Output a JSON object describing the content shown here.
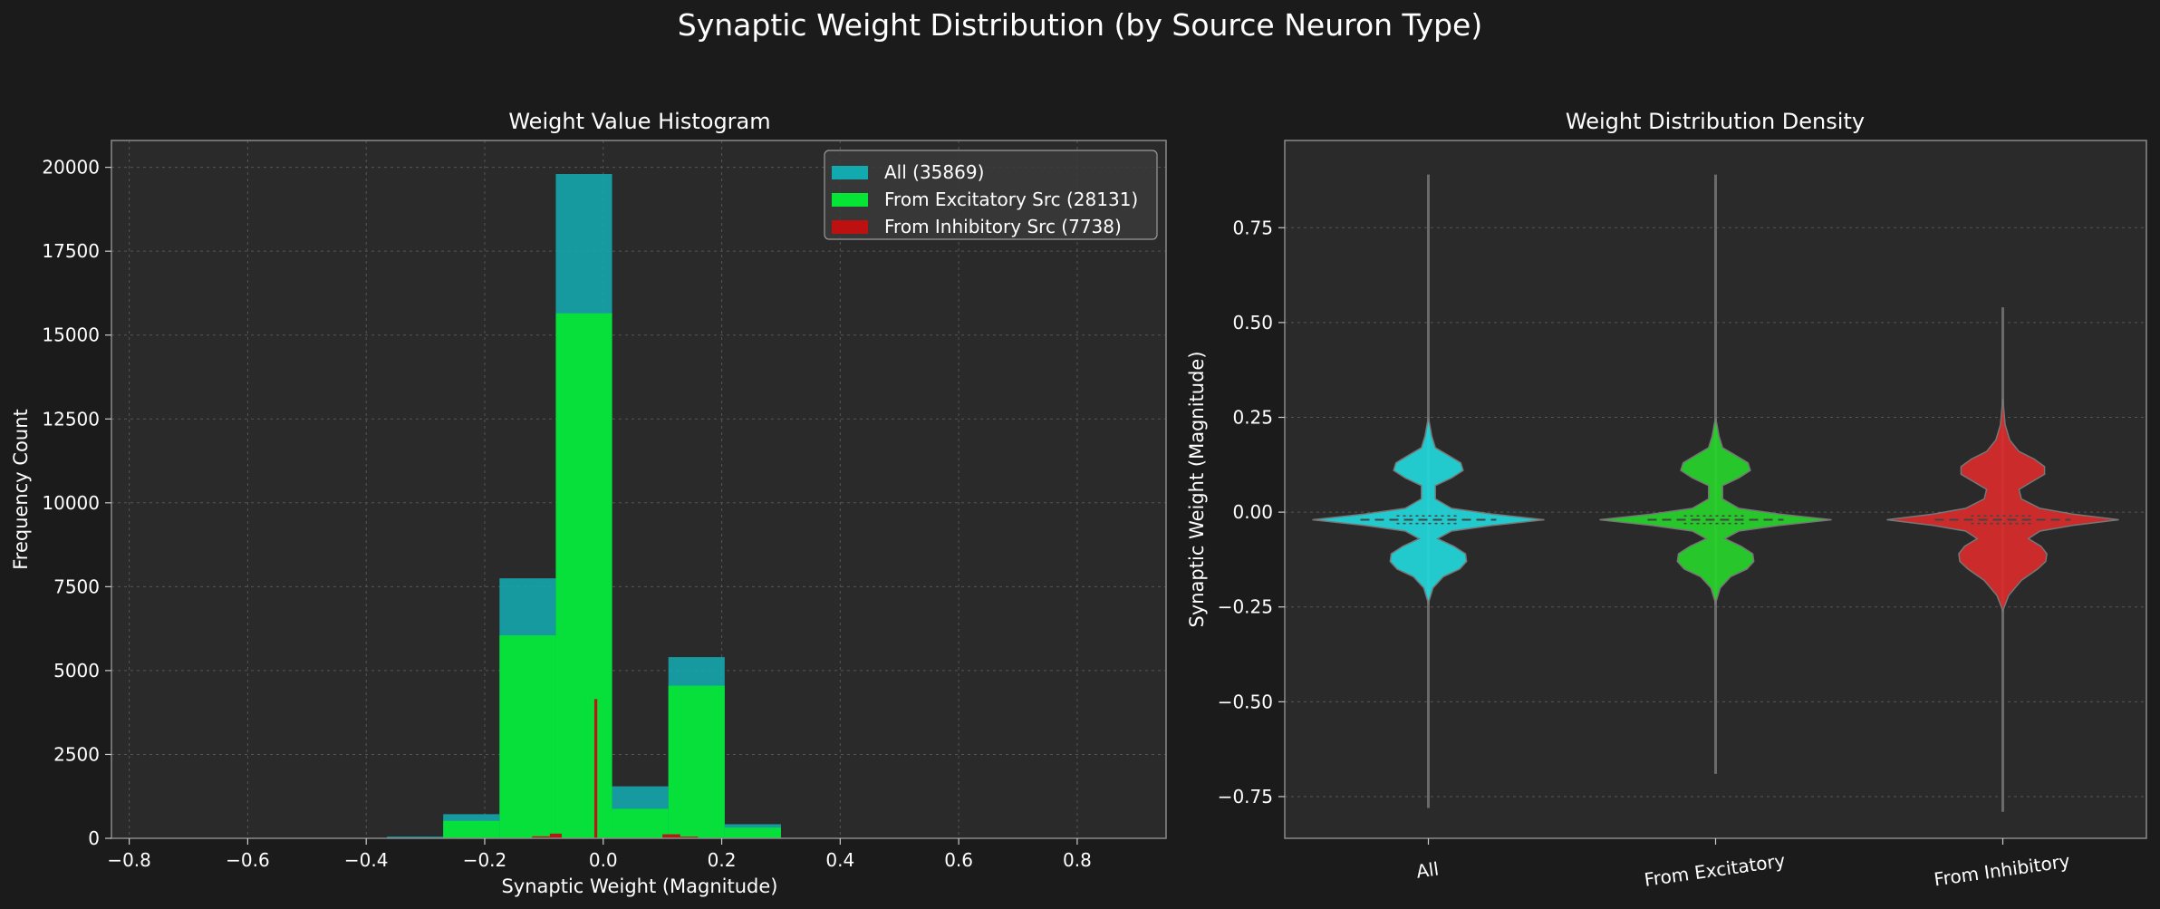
{
  "figure": {
    "title": "Synaptic Weight Distribution (by Source Neuron Type)",
    "background": "#1b1b1b",
    "panel_background": "#2a2a2a"
  },
  "chart_data": [
    {
      "type": "bar",
      "subtype": "overlaid-histogram",
      "title": "Weight Value Histogram",
      "xlabel": "Synaptic Weight (Magnitude)",
      "ylabel": "Frequency Count",
      "xlim": [
        -0.83,
        0.95
      ],
      "ylim": [
        0,
        20800
      ],
      "xticks": [
        -0.8,
        -0.6,
        -0.4,
        -0.2,
        0.0,
        0.2,
        0.4,
        0.6,
        0.8
      ],
      "xtick_labels": [
        "−0.8",
        "−0.6",
        "−0.4",
        "−0.2",
        "0.0",
        "0.2",
        "0.4",
        "0.6",
        "0.8"
      ],
      "yticks": [
        0,
        2500,
        5000,
        7500,
        10000,
        12500,
        15000,
        17500,
        20000
      ],
      "ytick_labels": [
        "0",
        "2500",
        "5000",
        "7500",
        "10000",
        "12500",
        "15000",
        "17500",
        "20000"
      ],
      "grid": true,
      "legend_position": "top-right",
      "legend": [
        "All (35869)",
        "From Excitatory Src (28131)",
        "From Inhibitory Src (7738)"
      ],
      "series": [
        {
          "name": "All (35869)",
          "color": "#13aaaf",
          "bins": [
            [
              -0.365,
              -0.27,
              50
            ],
            [
              -0.27,
              -0.175,
              720
            ],
            [
              -0.175,
              -0.08,
              7750
            ],
            [
              -0.08,
              0.015,
              19800
            ],
            [
              0.015,
              0.11,
              1550
            ],
            [
              0.11,
              0.205,
              5400
            ],
            [
              0.205,
              0.3,
              420
            ]
          ]
        },
        {
          "name": "From Excitatory Src (28131)",
          "color": "#06e436",
          "bins": [
            [
              -0.27,
              -0.175,
              520
            ],
            [
              -0.175,
              -0.08,
              6050
            ],
            [
              -0.08,
              0.015,
              15650
            ],
            [
              0.015,
              0.11,
              880
            ],
            [
              0.11,
              0.205,
              4550
            ],
            [
              0.205,
              0.3,
              320
            ]
          ]
        },
        {
          "name": "From Inhibitory Src (7738)",
          "color": "#bd1010",
          "bins": [
            [
              -0.3,
              -0.24,
              15
            ],
            [
              -0.12,
              -0.09,
              60
            ],
            [
              -0.09,
              -0.07,
              140
            ],
            [
              -0.015,
              -0.01,
              4150
            ],
            [
              0.1,
              0.13,
              120
            ],
            [
              0.13,
              0.16,
              50
            ]
          ]
        }
      ]
    },
    {
      "type": "violin",
      "title": "Weight Distribution Density",
      "ylabel": "Synaptic Weight (Magnitude)",
      "ylim": [
        -0.86,
        0.98
      ],
      "yticks": [
        -0.75,
        -0.5,
        -0.25,
        0.0,
        0.25,
        0.5,
        0.75
      ],
      "ytick_labels": [
        "−0.75",
        "−0.50",
        "−0.25",
        "0.00",
        "0.25",
        "0.50",
        "0.75"
      ],
      "categories": [
        "All",
        "From Excitatory",
        "From Inhibitory"
      ],
      "grid": true,
      "series": [
        {
          "name": "All",
          "color": "#22d8dc",
          "min": -0.78,
          "max": 0.89,
          "median": -0.02,
          "profile": [
            [
              -0.24,
              0.0
            ],
            [
              -0.2,
              0.04
            ],
            [
              -0.17,
              0.13
            ],
            [
              -0.15,
              0.27
            ],
            [
              -0.13,
              0.33
            ],
            [
              -0.11,
              0.32
            ],
            [
              -0.09,
              0.22
            ],
            [
              -0.07,
              0.08
            ],
            [
              -0.05,
              0.2
            ],
            [
              -0.035,
              0.55
            ],
            [
              -0.02,
              1.0
            ],
            [
              -0.005,
              0.55
            ],
            [
              0.01,
              0.2
            ],
            [
              0.035,
              0.06
            ],
            [
              0.07,
              0.06
            ],
            [
              0.09,
              0.2
            ],
            [
              0.11,
              0.3
            ],
            [
              0.13,
              0.28
            ],
            [
              0.15,
              0.17
            ],
            [
              0.17,
              0.06
            ],
            [
              0.2,
              0.03
            ],
            [
              0.25,
              0.0
            ]
          ]
        },
        {
          "name": "From Excitatory",
          "color": "#27d42a",
          "min": -0.69,
          "max": 0.89,
          "median": -0.02,
          "profile": [
            [
              -0.24,
              0.0
            ],
            [
              -0.2,
              0.04
            ],
            [
              -0.17,
              0.13
            ],
            [
              -0.15,
              0.27
            ],
            [
              -0.13,
              0.33
            ],
            [
              -0.11,
              0.32
            ],
            [
              -0.09,
              0.22
            ],
            [
              -0.07,
              0.08
            ],
            [
              -0.05,
              0.2
            ],
            [
              -0.035,
              0.55
            ],
            [
              -0.02,
              1.0
            ],
            [
              -0.005,
              0.55
            ],
            [
              0.01,
              0.2
            ],
            [
              0.035,
              0.06
            ],
            [
              0.07,
              0.06
            ],
            [
              0.09,
              0.2
            ],
            [
              0.11,
              0.3
            ],
            [
              0.13,
              0.28
            ],
            [
              0.15,
              0.17
            ],
            [
              0.17,
              0.06
            ],
            [
              0.2,
              0.03
            ],
            [
              0.25,
              0.0
            ]
          ]
        },
        {
          "name": "From Inhibitory",
          "color": "#d92b2b",
          "min": -0.79,
          "max": 0.54,
          "median": -0.02,
          "profile": [
            [
              -0.26,
              0.0
            ],
            [
              -0.22,
              0.05
            ],
            [
              -0.18,
              0.16
            ],
            [
              -0.15,
              0.3
            ],
            [
              -0.13,
              0.37
            ],
            [
              -0.11,
              0.38
            ],
            [
              -0.09,
              0.33
            ],
            [
              -0.07,
              0.22
            ],
            [
              -0.05,
              0.32
            ],
            [
              -0.035,
              0.6
            ],
            [
              -0.02,
              1.0
            ],
            [
              -0.005,
              0.6
            ],
            [
              0.01,
              0.32
            ],
            [
              0.035,
              0.16
            ],
            [
              0.06,
              0.14
            ],
            [
              0.08,
              0.25
            ],
            [
              0.1,
              0.36
            ],
            [
              0.12,
              0.36
            ],
            [
              0.14,
              0.27
            ],
            [
              0.16,
              0.14
            ],
            [
              0.19,
              0.06
            ],
            [
              0.23,
              0.02
            ],
            [
              0.3,
              0.0
            ]
          ]
        }
      ]
    }
  ]
}
